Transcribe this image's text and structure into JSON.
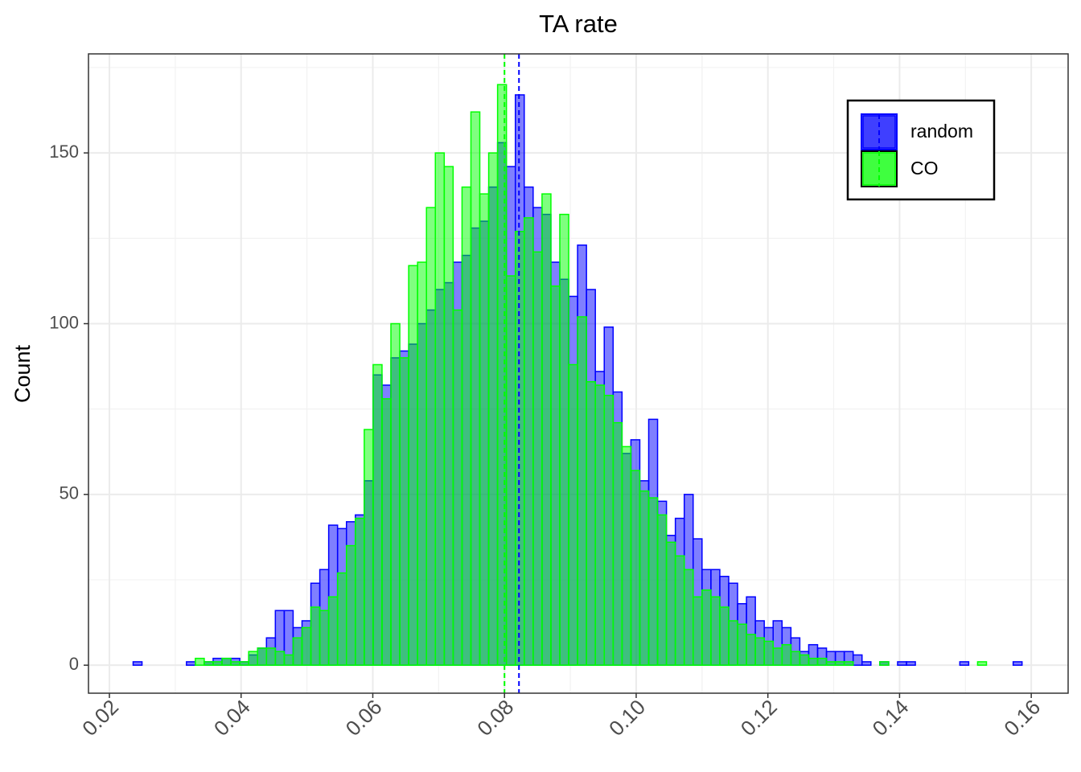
{
  "chart_data": {
    "type": "histogram",
    "title": "TA rate",
    "ylabel": "Count",
    "bins": [
      0.0236,
      0.02495,
      0.0263,
      0.02765,
      0.029,
      0.03035,
      0.0317,
      0.03305,
      0.0344,
      0.03575,
      0.0371,
      0.03845,
      0.0398,
      0.04115,
      0.0425,
      0.04385,
      0.0452,
      0.04655,
      0.0479,
      0.04925,
      0.0506,
      0.05195,
      0.0533,
      0.05465,
      0.056,
      0.05735,
      0.0587,
      0.06005,
      0.0614,
      0.06275,
      0.0641,
      0.06545,
      0.0668,
      0.06815,
      0.0695,
      0.07085,
      0.0722,
      0.07355,
      0.0749,
      0.07625,
      0.0776,
      0.07895,
      0.0803,
      0.08165,
      0.083,
      0.08435,
      0.0857,
      0.08705,
      0.0884,
      0.08975,
      0.0911,
      0.09245,
      0.0938,
      0.09515,
      0.0965,
      0.09785,
      0.0992,
      0.10055,
      0.1019,
      0.10325,
      0.1046,
      0.10595,
      0.1073,
      0.10865,
      0.11,
      0.11135,
      0.1127,
      0.11405,
      0.1154,
      0.11675,
      0.1181,
      0.11945,
      0.1208,
      0.12215,
      0.1235,
      0.12485,
      0.1262,
      0.12755,
      0.1289,
      0.13025,
      0.1316,
      0.13295,
      0.1343,
      0.13565,
      0.137,
      0.13835,
      0.1397,
      0.14105,
      0.1424,
      0.14375,
      0.1451,
      0.14645,
      0.1478,
      0.14915,
      0.1505,
      0.15185,
      0.1532,
      0.15455,
      0.1559,
      0.15725,
      0.1586
    ],
    "series": [
      {
        "name": "random",
        "color": "#0000ff",
        "mean": 0.0822,
        "values": [
          1,
          0,
          0,
          0,
          0,
          0,
          1,
          0,
          1,
          2,
          2,
          2,
          1,
          3,
          5,
          8,
          16,
          16,
          11,
          13,
          24,
          28,
          41,
          40,
          42,
          44,
          54,
          85,
          82,
          90,
          92,
          94,
          100,
          104,
          110,
          112,
          118,
          120,
          128,
          130,
          140,
          153,
          146,
          167,
          140,
          134,
          132,
          118,
          113,
          108,
          123,
          110,
          86,
          99,
          80,
          62,
          66,
          54,
          72,
          48,
          38,
          43,
          50,
          37,
          28,
          28,
          26,
          24,
          18,
          20,
          13,
          11,
          13,
          11,
          8,
          4,
          6,
          5,
          4,
          4,
          4,
          3,
          1,
          0,
          1,
          0,
          1,
          1,
          0,
          0,
          0,
          0,
          0,
          1,
          0,
          0,
          0,
          0,
          0,
          1
        ]
      },
      {
        "name": "CO",
        "color": "#00ff00",
        "mean": 0.08,
        "values": [
          0,
          0,
          0,
          0,
          0,
          0,
          0,
          2,
          1,
          1,
          2,
          1,
          1,
          4,
          5,
          5,
          4,
          3,
          8,
          11,
          17,
          16,
          20,
          27,
          35,
          43,
          69,
          88,
          78,
          100,
          90,
          117,
          118,
          134,
          150,
          146,
          104,
          140,
          162,
          138,
          150,
          170,
          114,
          127,
          131,
          121,
          138,
          111,
          132,
          88,
          102,
          83,
          82,
          79,
          71,
          64,
          57,
          51,
          49,
          44,
          36,
          32,
          28,
          20,
          22,
          20,
          17,
          13,
          12,
          9,
          8,
          7,
          5,
          6,
          4,
          3,
          2,
          2,
          1,
          1,
          1,
          0,
          0,
          0,
          1,
          0,
          0,
          0,
          0,
          0,
          0,
          0,
          0,
          0,
          0,
          1,
          0,
          0,
          0,
          0
        ]
      }
    ],
    "xlim": [
      0.01682,
      0.1656
    ],
    "ylim": [
      -8.2,
      179
    ],
    "xticks": [
      0.02,
      0.04,
      0.06,
      0.08,
      {
        "value": 0.1,
        "label": "0.10"
      },
      0.12,
      0.14,
      0.16
    ],
    "yticks": [
      0,
      50,
      100,
      150
    ],
    "grid": true,
    "legend": "top-right"
  }
}
